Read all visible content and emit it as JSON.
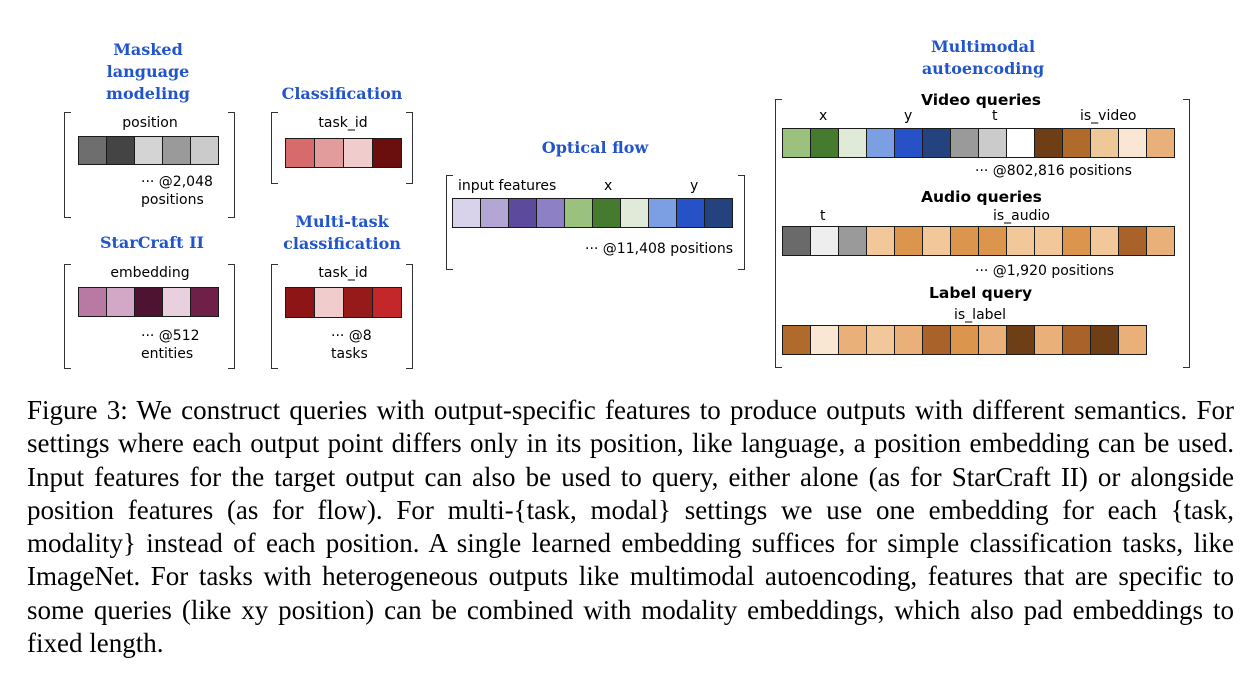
{
  "panels": {
    "mlm": {
      "title": "Masked\nlanguage\nmodeling",
      "label": "position",
      "count": "··· @2,048\npositions",
      "colors": [
        "#6e6e6e",
        "#444444",
        "#d4d4d4",
        "#9a9a9a",
        "#cbcbcb"
      ]
    },
    "classification": {
      "title": "Classification",
      "label": "task_id",
      "colors": [
        "#d76a6a",
        "#e39c9c",
        "#f0cccc",
        "#6b0e0e"
      ]
    },
    "starcraft": {
      "title": "StarCraft II",
      "label": "embedding",
      "count": "··· @512\nentities",
      "colors": [
        "#b87aa3",
        "#d2a8c6",
        "#4e1330",
        "#e8d0de",
        "#6e2048"
      ]
    },
    "multitask": {
      "title": "Multi-task\nclassification",
      "label": "task_id",
      "count": "··· @8\ntasks",
      "colors": [
        "#8d1515",
        "#f0cccc",
        "#961a1a",
        "#c4272a"
      ]
    },
    "optical_flow": {
      "title": "Optical flow",
      "labels": [
        "input features",
        "x",
        "y"
      ],
      "count": "··· @11,408 positions",
      "colors": [
        "#d8d3ea",
        "#b3a6d4",
        "#5c4a9c",
        "#8e80c4",
        "#9ac27e",
        "#467a2e",
        "#dfebd8",
        "#7c9ee2",
        "#2751c6",
        "#24427e"
      ]
    },
    "multimodal": {
      "title": "Multimodal\nautoencoding",
      "video": {
        "title": "Video queries",
        "labels": [
          "x",
          "y",
          "t",
          "is_video"
        ],
        "count": "··· @802,816 positions",
        "colors": [
          "#9ac27e",
          "#467a2e",
          "#dfebd8",
          "#7c9ee2",
          "#2751c6",
          "#24427e",
          "#9a9a9a",
          "#cbcbcb",
          "#ffffff",
          "#6e3e17",
          "#b06a2c",
          "#efc89a",
          "#f9e7d4",
          "#eab07a"
        ]
      },
      "audio": {
        "title": "Audio queries",
        "labels": [
          "t",
          "is_audio"
        ],
        "count": "··· @1,920 positions",
        "colors": [
          "#6a6a6a",
          "#eeeeee",
          "#9a9a9a",
          "#f2c799",
          "#dc954c",
          "#f2c799",
          "#dc954c",
          "#dc954c",
          "#f2c799",
          "#f2c799",
          "#dc954c",
          "#f2c799",
          "#a9622a",
          "#eab07a"
        ]
      },
      "label": {
        "title": "Label query",
        "labels": [
          "is_label"
        ],
        "colors": [
          "#b06a2c",
          "#f9e7d4",
          "#eab07a",
          "#f2c799",
          "#eab07a",
          "#a9622a",
          "#dc954c",
          "#eab07a",
          "#6e3e17",
          "#eab07a",
          "#a9622a",
          "#6e3e17",
          "#eab07a"
        ]
      }
    }
  },
  "caption": "Figure 3: We construct queries with output-specific features to produce outputs with different semantics. For settings where each output point differs only in its position, like language, a position embedding can be used. Input features for the target output can also be used to query, either alone (as for StarCraft II) or alongside position features (as for flow). For multi-{task, modal} settings we use one embedding for each {task, modality} instead of each position. A single learned embedding suffices for simple classification tasks, like ImageNet. For tasks with heterogeneous outputs like multimodal autoencoding, features that are specific to some queries (like xy position) can be combined with modality embeddings, which also pad embeddings to fixed length."
}
